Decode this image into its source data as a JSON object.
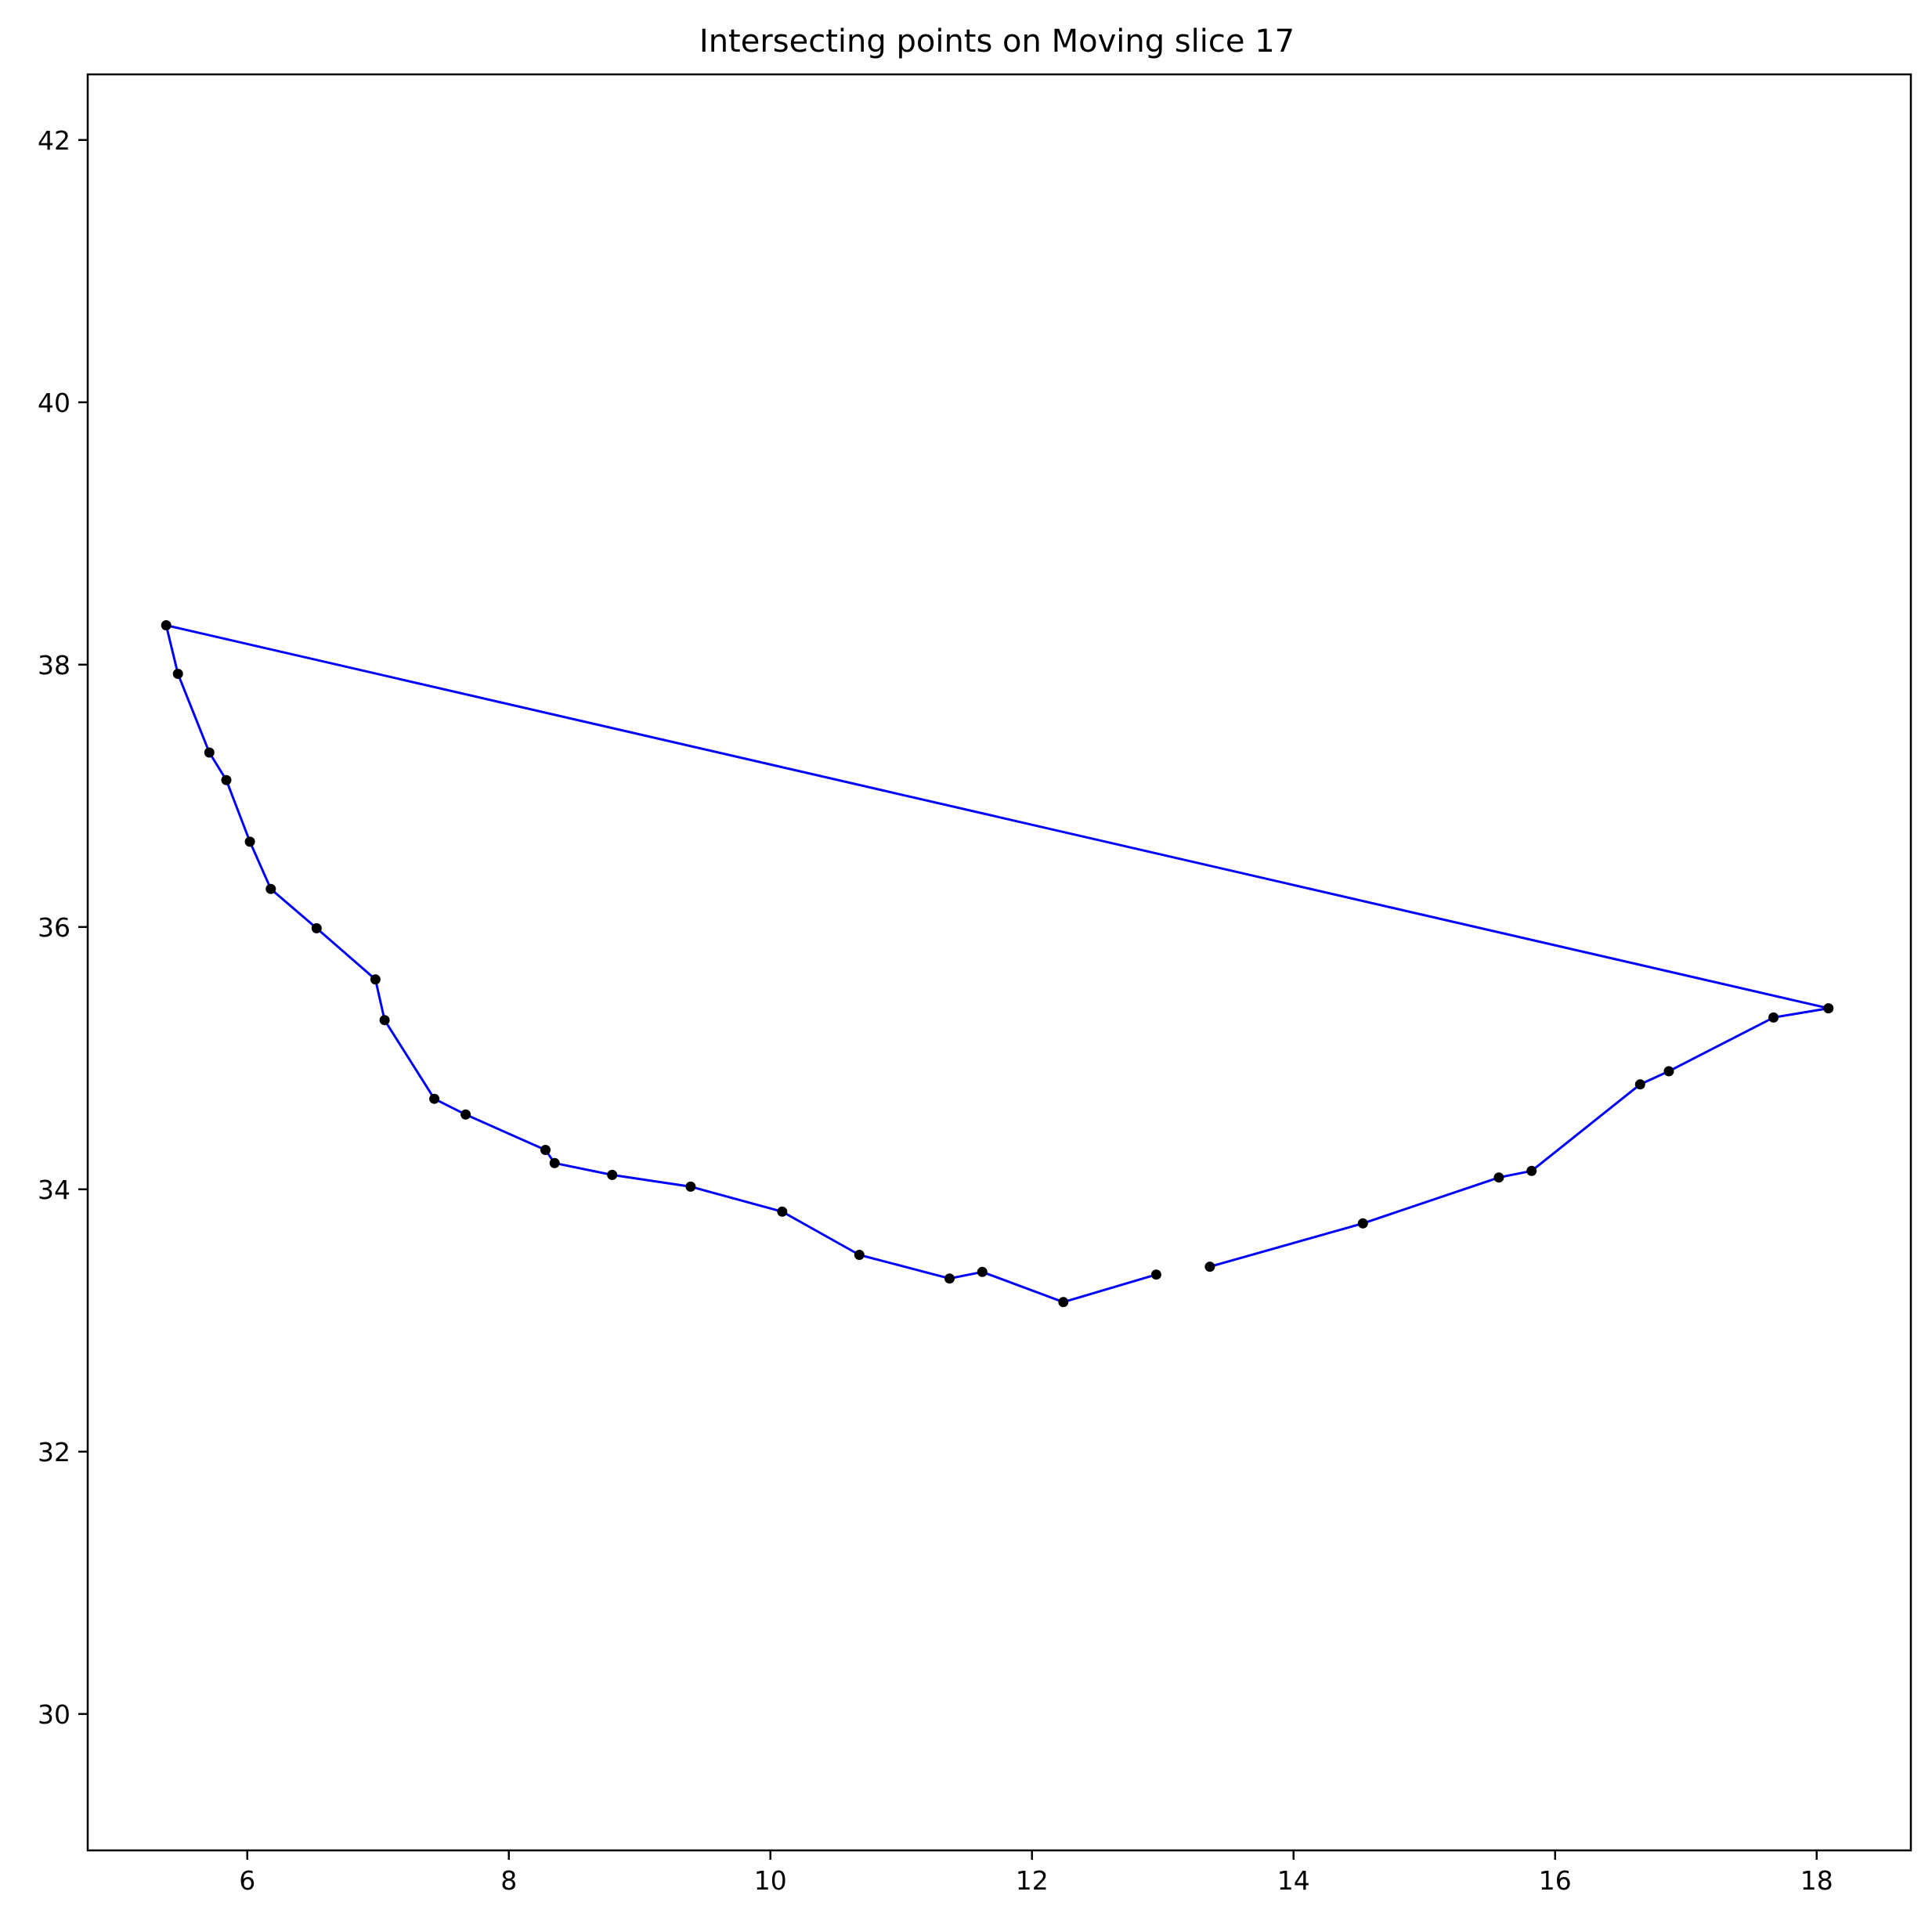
{
  "chart_data": {
    "type": "line",
    "title": "Intersecting points on Moving slice 17",
    "xlabel": "",
    "ylabel": "",
    "xlim": [
      4.78,
      18.72
    ],
    "ylim": [
      28.96,
      42.5
    ],
    "xticks": [
      6,
      8,
      10,
      12,
      14,
      16,
      18
    ],
    "yticks": [
      30,
      32,
      34,
      36,
      38,
      40,
      42
    ],
    "grid": false,
    "legend": "none",
    "line_color": "#0000ff",
    "marker_color": "#000000",
    "segments": [
      {
        "points": [
          [
            13.36,
            33.41
          ],
          [
            14.53,
            33.74
          ],
          [
            15.57,
            34.09
          ],
          [
            15.82,
            34.14
          ],
          [
            16.65,
            34.8
          ],
          [
            16.87,
            34.9
          ],
          [
            17.67,
            35.31
          ],
          [
            18.09,
            35.38
          ],
          [
            5.38,
            38.3
          ],
          [
            5.47,
            37.93
          ],
          [
            5.71,
            37.33
          ],
          [
            5.84,
            37.12
          ],
          [
            6.02,
            36.65
          ],
          [
            6.18,
            36.29
          ],
          [
            6.53,
            35.99
          ],
          [
            6.98,
            35.6
          ],
          [
            7.05,
            35.29
          ],
          [
            7.43,
            34.69
          ],
          [
            7.67,
            34.57
          ],
          [
            8.28,
            34.3
          ],
          [
            8.35,
            34.2
          ],
          [
            8.79,
            34.11
          ],
          [
            9.39,
            34.02
          ],
          [
            10.09,
            33.83
          ],
          [
            10.68,
            33.5
          ],
          [
            11.37,
            33.32
          ],
          [
            11.62,
            33.37
          ],
          [
            12.24,
            33.14
          ],
          [
            12.95,
            33.35
          ]
        ]
      }
    ]
  }
}
